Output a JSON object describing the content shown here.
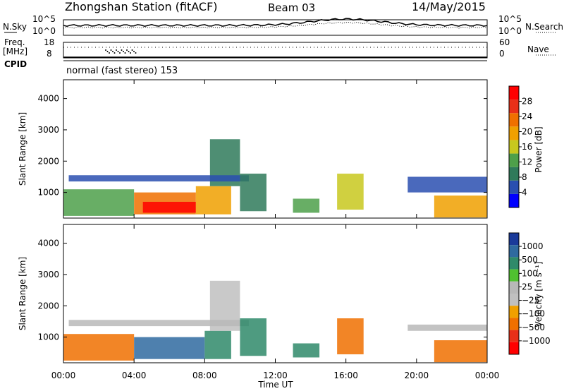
{
  "header": {
    "station": "Zhongshan Station (fitACF)",
    "beam": "Beam 03",
    "date": "14/May/2015"
  },
  "mini_panels": {
    "nsky_label": "N.Sky",
    "nsky_ticks": [
      "10^5",
      "10^0"
    ],
    "nsearch_label": "N.Search",
    "nsearch_ticks": [
      "10^5",
      "10^0"
    ],
    "freq_label_1": "Freq.",
    "freq_label_2": "[MHz]",
    "freq_ticks": [
      "18",
      "8"
    ],
    "nave_label": "Nave",
    "nave_ticks": [
      "60",
      "0"
    ],
    "cpid_label": "CPID",
    "cpid_value": "normal (fast stereo) 153"
  },
  "colors": {
    "power_scale": [
      "#0000ff",
      "#2a4fb0",
      "#2f7a5a",
      "#4ea04a",
      "#c8c81e",
      "#f0a000",
      "#f07000",
      "#e83018",
      "#ff0000"
    ],
    "velocity_scale": [
      "#ff0000",
      "#e83018",
      "#f07000",
      "#f0a000",
      "#c0c0c0",
      "#b8b8b8",
      "#50c030",
      "#2f8a6a",
      "#2f6aa0",
      "#1a3a9a"
    ]
  },
  "chart_data": [
    {
      "type": "heatmap",
      "title": "Power",
      "xlabel": "",
      "ylabel": "Slant Range [km]",
      "x_ticks": [
        "00:00",
        "04:00",
        "08:00",
        "12:00",
        "16:00",
        "20:00",
        "00:00"
      ],
      "x_range_hours": [
        0,
        24
      ],
      "y_ticks": [
        1000,
        2000,
        3000,
        4000
      ],
      "y_range_km": [
        180,
        4600
      ],
      "colorbar_label": "Power [dB]",
      "colorbar_ticks": [
        4,
        8,
        12,
        16,
        20,
        24,
        28
      ],
      "colorbar_range": [
        0,
        32
      ],
      "echo_regions": [
        {
          "t0": 0.0,
          "t1": 4.0,
          "r0": 250,
          "r1": 1100,
          "value": 14
        },
        {
          "t0": 4.0,
          "t1": 7.5,
          "r0": 300,
          "r1": 1000,
          "value": 22
        },
        {
          "t0": 4.5,
          "t1": 7.5,
          "r0": 350,
          "r1": 700,
          "value": 29
        },
        {
          "t0": 7.5,
          "t1": 9.5,
          "r0": 300,
          "r1": 1200,
          "value": 18
        },
        {
          "t0": 8.3,
          "t1": 10.0,
          "r0": 1200,
          "r1": 2700,
          "value": 10
        },
        {
          "t0": 0.3,
          "t1": 10.5,
          "r0": 1350,
          "r1": 1550,
          "value": 7
        },
        {
          "t0": 10.0,
          "t1": 11.5,
          "r0": 400,
          "r1": 1600,
          "value": 9
        },
        {
          "t0": 13.0,
          "t1": 14.5,
          "r0": 350,
          "r1": 800,
          "value": 11
        },
        {
          "t0": 15.5,
          "t1": 17.0,
          "r0": 450,
          "r1": 1600,
          "value": 17
        },
        {
          "t0": 19.5,
          "t1": 24.0,
          "r0": 1000,
          "r1": 1500,
          "value": 7
        },
        {
          "t0": 21.0,
          "t1": 24.0,
          "r0": 200,
          "r1": 900,
          "value": 21
        }
      ]
    },
    {
      "type": "heatmap",
      "title": "Velocity",
      "xlabel": "Time UT",
      "ylabel": "Slant Range [km]",
      "x_ticks": [
        "00:00",
        "04:00",
        "08:00",
        "12:00",
        "16:00",
        "20:00",
        "00:00"
      ],
      "x_range_hours": [
        0,
        24
      ],
      "y_ticks": [
        1000,
        2000,
        3000,
        4000
      ],
      "y_range_km": [
        180,
        4600
      ],
      "colorbar_label": "Velocity [m s⁻¹]",
      "colorbar_ticks": [
        "1000",
        "500",
        "100",
        "25",
        "−25",
        "−100",
        "−500",
        "−1000"
      ],
      "echo_regions": [
        {
          "t0": 0.0,
          "t1": 4.0,
          "r0": 250,
          "r1": 1100,
          "value": -300
        },
        {
          "t0": 4.0,
          "t1": 8.0,
          "r0": 300,
          "r1": 1000,
          "value": 700
        },
        {
          "t0": 8.0,
          "t1": 9.5,
          "r0": 300,
          "r1": 1200,
          "value": 200
        },
        {
          "t0": 8.3,
          "t1": 10.0,
          "r0": 1200,
          "r1": 2800,
          "value": 0
        },
        {
          "t0": 0.3,
          "t1": 10.5,
          "r0": 1350,
          "r1": 1550,
          "value": 5
        },
        {
          "t0": 10.0,
          "t1": 11.5,
          "r0": 400,
          "r1": 1600,
          "value": 300
        },
        {
          "t0": 13.0,
          "t1": 14.5,
          "r0": 350,
          "r1": 800,
          "value": 150
        },
        {
          "t0": 15.5,
          "t1": 17.0,
          "r0": 450,
          "r1": 1600,
          "value": -150
        },
        {
          "t0": 19.5,
          "t1": 24.0,
          "r0": 1200,
          "r1": 1400,
          "value": 5
        },
        {
          "t0": 21.0,
          "t1": 24.0,
          "r0": 200,
          "r1": 900,
          "value": -300
        }
      ]
    }
  ]
}
